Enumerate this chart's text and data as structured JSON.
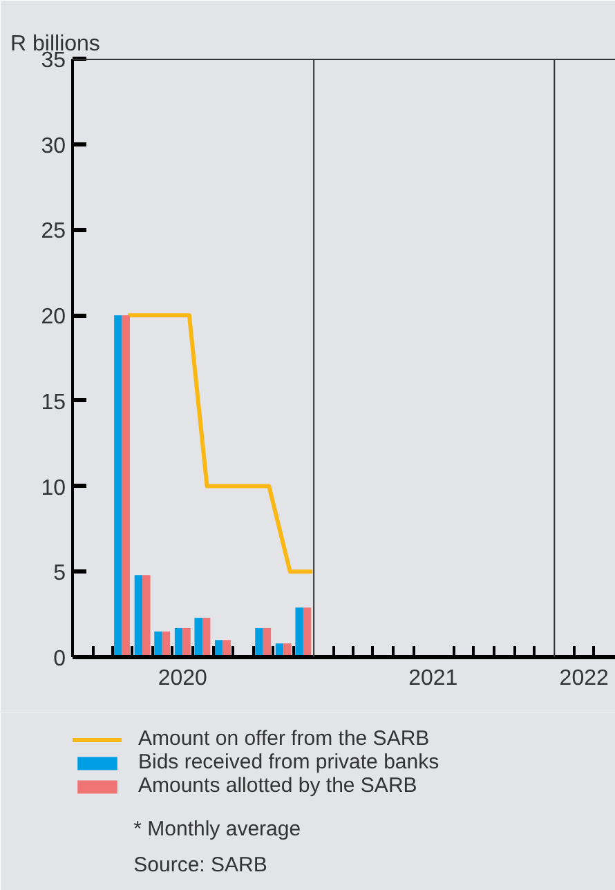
{
  "chart_data": {
    "type": "bar",
    "ylabel": "R billions",
    "x": [
      "2020-03-16",
      "2020-04-16",
      "2020-05-16",
      "2020-06-16",
      "2020-07-16",
      "2020-08-16",
      "2020-10-16",
      "2020-11-16",
      "2020-12-16"
    ],
    "series": [
      {
        "name": "Amount on offer from the SARB",
        "type": "line",
        "color": "#fbb714",
        "x": [
          "2020-03-25",
          "2020-06-26",
          "2020-07-23",
          "2020-10-25",
          "2020-11-26",
          "2020-12-30"
        ],
        "values": [
          20,
          20,
          10,
          10,
          5,
          5
        ]
      },
      {
        "name": "Bids received from private banks",
        "color": "#009fe3",
        "values": [
          20,
          4.8,
          1.5,
          1.7,
          2.3,
          1.0,
          1.7,
          0.8,
          2.9
        ]
      },
      {
        "name": "Amounts allotted by the SARB",
        "color": "#f07474",
        "values": [
          20,
          4.8,
          1.5,
          1.7,
          2.3,
          1.0,
          1.7,
          0.8,
          2.9
        ]
      }
    ],
    "xlim": [
      "2020-01-01",
      "2022-04-04"
    ],
    "xticks": [
      {
        "value": "2020-02-01",
        "label": null
      },
      {
        "value": "2020-03-01",
        "label": null
      },
      {
        "value": "2020-04-01",
        "label": null
      },
      {
        "value": "2020-05-01",
        "label": null
      },
      {
        "value": "2020-06-01",
        "label": null
      },
      {
        "value": "2020-06-16",
        "label": "2020"
      },
      {
        "value": "2020-07-01",
        "label": null
      },
      {
        "value": "2020-08-01",
        "label": null
      },
      {
        "value": "2020-09-01",
        "label": null
      },
      {
        "value": "2020-10-01",
        "label": null
      },
      {
        "value": "2020-11-01",
        "label": null
      },
      {
        "value": "2020-12-01",
        "label": null
      },
      {
        "value": "2021-02-01",
        "label": null
      },
      {
        "value": "2021-03-01",
        "label": null
      },
      {
        "value": "2021-04-01",
        "label": null
      },
      {
        "value": "2021-05-01",
        "label": null
      },
      {
        "value": "2021-06-01",
        "label": null
      },
      {
        "value": "2021-07-01",
        "label": "2021"
      },
      {
        "value": "2021-08-01",
        "label": null
      },
      {
        "value": "2021-09-01",
        "label": null
      },
      {
        "value": "2021-10-01",
        "label": null
      },
      {
        "value": "2021-11-01",
        "label": null
      },
      {
        "value": "2021-12-01",
        "label": null
      },
      {
        "value": "2022-02-01",
        "label": null
      },
      {
        "value": "2022-02-15",
        "label": "2022"
      },
      {
        "value": "2022-03-01",
        "label": null
      }
    ],
    "ylim": [
      0,
      35
    ],
    "yticks": [
      0,
      5,
      10,
      15,
      20,
      25,
      30,
      35
    ],
    "ref_lines": [
      {
        "axis": "x",
        "value": "2021-01-01",
        "color": "#333333"
      },
      {
        "axis": "x",
        "value": "2022-01-01",
        "color": "#333333"
      }
    ],
    "grid": false,
    "legend": "bottom",
    "annotations": [
      "* Monthly average",
      "Source: SARB"
    ]
  }
}
